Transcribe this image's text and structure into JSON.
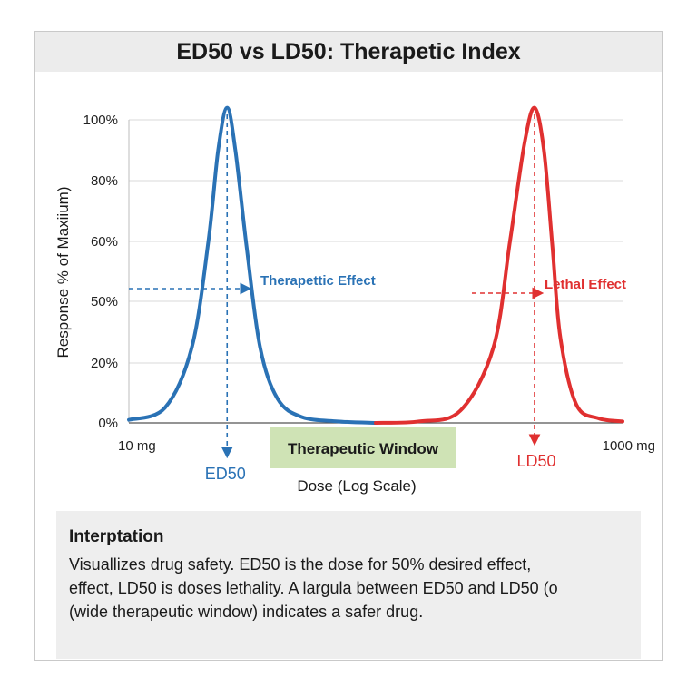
{
  "chart_data": {
    "type": "line",
    "title": "ED50 vs LD50: Therapetic Index",
    "xlabel": "Dose (Log Scale)",
    "ylabel": "Response % of Maxiium)",
    "x_scale": "log",
    "xlim": [
      10,
      1000
    ],
    "ylim": [
      0,
      100
    ],
    "x_tick_labels": [
      "10 mg",
      "1000 mg"
    ],
    "y_ticks": [
      {
        "value": 0,
        "label": "0%"
      },
      {
        "value": 20,
        "label": "20%"
      },
      {
        "value": 50,
        "label": "50%"
      },
      {
        "value": 60,
        "label": "60%"
      },
      {
        "value": 80,
        "label": "80%"
      },
      {
        "value": 100,
        "label": "100%"
      }
    ],
    "grid": true,
    "series": [
      {
        "color": "#2a72b5",
        "x": [
          10,
          14,
          18,
          21,
          23,
          25,
          27,
          30,
          34,
          40,
          50,
          70,
          100
        ],
        "y": [
          1,
          5,
          25,
          60,
          90,
          104,
          90,
          58,
          25,
          8,
          2,
          0.5,
          0
        ]
      },
      {
        "color": "#e03030",
        "x": [
          100,
          150,
          220,
          300,
          350,
          400,
          440,
          480,
          520,
          560,
          650,
          800,
          1000
        ],
        "y": [
          0,
          0.5,
          4,
          25,
          60,
          92,
          104,
          90,
          58,
          28,
          6,
          1.5,
          0.5
        ]
      }
    ],
    "annotations": {
      "ed50_label": "ED50",
      "ld50_label": "LD50",
      "therapeutic_effect_label": "Therapettic Effect",
      "lethal_effect_label": "Lethal Effect",
      "therapeutic_window_label": "Therapeutic Window",
      "ed50_dose": 25,
      "ld50_dose": 440,
      "window_range": [
        70,
        330
      ]
    },
    "colors": {
      "therapeutic": "#2a72b5",
      "lethal": "#e03030",
      "window_bg": "#cfe3b5"
    }
  },
  "interpretation": {
    "heading": "Interptation",
    "lines": [
      "Visuallizes drug safety. ED50 is the dose for 50% desired effect,",
      "effect, LD50 is doses lethality. A largula between ED50 and LD50 (o",
      "(wide therapeutic window) indicates a safer drug."
    ]
  }
}
